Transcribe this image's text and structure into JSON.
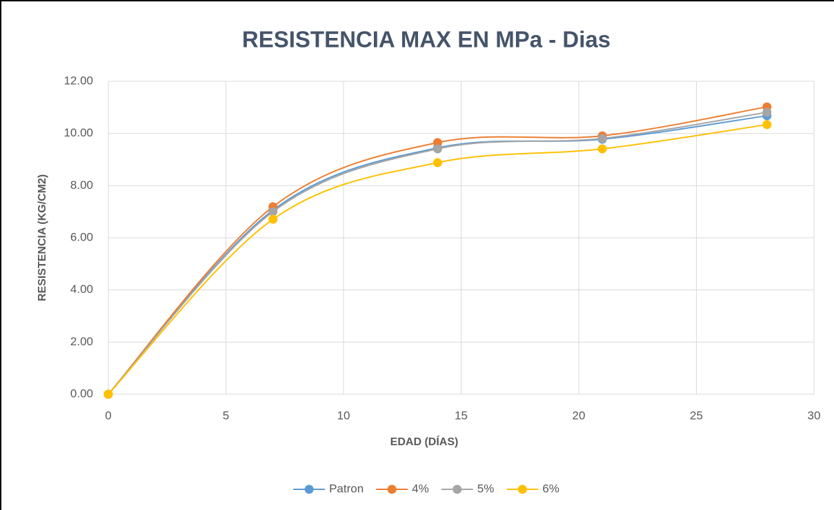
{
  "chart_data": {
    "type": "line",
    "title": "RESISTENCIA MAX EN MPa - Dias",
    "x_label": "EDAD (DÍAS)",
    "y_label": "RESISTENCIA (KG/CM2)",
    "x": [
      0,
      7,
      14,
      21,
      28
    ],
    "series": [
      {
        "name": "Patron",
        "color": "#5b9bd5",
        "values": [
          0,
          7.06,
          9.45,
          9.78,
          10.68
        ]
      },
      {
        "name": "4%",
        "color": "#ed7d31",
        "values": [
          0,
          7.19,
          9.65,
          9.91,
          11.02
        ]
      },
      {
        "name": "5%",
        "color": "#a5a5a5",
        "values": [
          0,
          7.0,
          9.41,
          9.81,
          10.81
        ]
      },
      {
        "name": "6%",
        "color": "#ffc000",
        "values": [
          0,
          6.71,
          8.88,
          9.41,
          10.34
        ]
      }
    ],
    "xlim": [
      0,
      30
    ],
    "xticks": [
      0,
      5,
      10,
      15,
      20,
      25,
      30
    ],
    "ylim": [
      0,
      12
    ],
    "yticks": [
      {
        "value": 0,
        "label": "0.00"
      },
      {
        "value": 2,
        "label": "2.00"
      },
      {
        "value": 4,
        "label": "4.00"
      },
      {
        "value": 6,
        "label": "6.00"
      },
      {
        "value": 8,
        "label": "8.00"
      },
      {
        "value": 10,
        "label": "10.00"
      },
      {
        "value": 12,
        "label": "12.00"
      }
    ],
    "grid": true,
    "smooth": true,
    "legend": "bottom"
  }
}
